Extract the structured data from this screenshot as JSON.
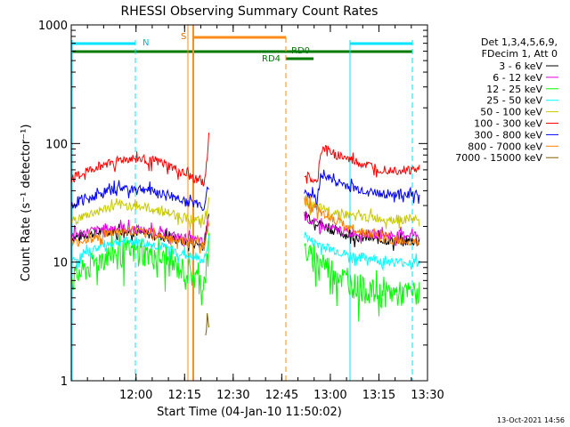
{
  "chart_data": {
    "type": "line",
    "title": "RHESSI Observing Summary Count Rates",
    "xlabel": "Start Time (04-Jan-10 11:50:02)",
    "ylabel": "Count Rate (s⁻¹ detector⁻¹)",
    "yscale": "log",
    "xlim_min": [
      -10,
      100
    ],
    "ylim": [
      1,
      1000
    ],
    "x_ticks": [
      {
        "value": 10,
        "label": "12:00"
      },
      {
        "value": 25,
        "label": "12:15"
      },
      {
        "value": 40,
        "label": "12:30"
      },
      {
        "value": 55,
        "label": "12:45"
      },
      {
        "value": 70,
        "label": "13:00"
      },
      {
        "value": 85,
        "label": "13:15"
      },
      {
        "value": 100,
        "label": "13:30"
      }
    ],
    "y_ticks": [
      {
        "value": 1,
        "label": "1"
      },
      {
        "value": 10,
        "label": "10"
      },
      {
        "value": 100,
        "label": "100"
      },
      {
        "value": 1000,
        "label": "1000"
      }
    ],
    "legend_header": [
      "Det 1,3,4,5,6,9,",
      "FDecim 1, Att 0"
    ],
    "series": [
      {
        "name": "3 - 6 keV",
        "color": "#000000",
        "x": [
          -10,
          -5,
          0,
          5,
          10,
          15,
          20,
          25,
          30,
          31,
          32.5,
          62,
          64,
          70,
          75,
          80,
          85,
          90,
          95,
          97.5
        ],
        "values": [
          16,
          17,
          18,
          18.5,
          18,
          17,
          16,
          15,
          14,
          13.5,
          24,
          26,
          23,
          19,
          17,
          16,
          15.5,
          15,
          15,
          15
        ]
      },
      {
        "name": "6 - 12 keV",
        "color": "#e000e0",
        "x": [
          -10,
          -5,
          0,
          5,
          10,
          15,
          20,
          25,
          30,
          31,
          32.5,
          62,
          64,
          70,
          75,
          80,
          85,
          90,
          95,
          97.5
        ],
        "values": [
          17,
          18,
          19,
          19.5,
          19,
          18,
          17,
          16,
          15,
          14.5,
          25,
          25,
          22,
          19,
          18,
          17.5,
          17,
          17,
          17,
          17
        ]
      },
      {
        "name": "12 - 25 keV",
        "color": "#00ff00",
        "x": [
          -10,
          -5,
          0,
          5,
          10,
          15,
          20,
          25,
          30,
          31,
          32.5,
          62,
          64,
          70,
          75,
          80,
          85,
          90,
          95,
          97.5
        ],
        "values": [
          7,
          9,
          11,
          12.5,
          12.5,
          11.5,
          10,
          8.5,
          7,
          6.5,
          12,
          13,
          11,
          9,
          7,
          6,
          5.5,
          5.5,
          5.5,
          5.5
        ]
      },
      {
        "name": "25 - 50 keV",
        "color": "#00ffff",
        "x": [
          -10,
          -5,
          0,
          5,
          10,
          15,
          20,
          25,
          30,
          31,
          32.5,
          62,
          64,
          70,
          75,
          80,
          85,
          90,
          95,
          97.5
        ],
        "values": [
          10,
          12,
          14,
          15,
          15,
          14,
          13,
          11.5,
          10.5,
          10,
          16,
          17,
          15,
          13,
          11.5,
          11,
          10.5,
          10,
          10,
          10
        ]
      },
      {
        "name": "50 - 100 keV",
        "color": "#c8c800",
        "x": [
          -10,
          -5,
          0,
          5,
          10,
          15,
          20,
          25,
          30,
          31,
          32.5,
          62,
          64,
          70,
          75,
          80,
          85,
          90,
          95,
          97.5
        ],
        "values": [
          22,
          25,
          28,
          30,
          30,
          28,
          26,
          24,
          22,
          21,
          33,
          33,
          30,
          27,
          25,
          24,
          23.5,
          23,
          23,
          23
        ]
      },
      {
        "name": "100 - 300 keV",
        "color": "#ff0000",
        "x": [
          -10,
          -5,
          0,
          5,
          10,
          15,
          20,
          25,
          30,
          31,
          32,
          32.5,
          62,
          64,
          66,
          67,
          68,
          70,
          75,
          80,
          85,
          90,
          95,
          97.5
        ],
        "values": [
          50,
          58,
          67,
          73,
          75,
          72,
          65,
          55,
          48,
          46,
          70,
          130,
          55,
          50,
          45,
          85,
          92,
          85,
          75,
          67,
          62,
          60,
          60,
          60
        ]
      },
      {
        "name": "300 - 800 keV",
        "color": "#0000ff",
        "x": [
          -10,
          -5,
          0,
          5,
          10,
          15,
          20,
          25,
          30,
          31,
          32.5,
          62,
          64,
          66,
          67,
          68,
          70,
          75,
          80,
          85,
          90,
          95,
          97.5
        ],
        "values": [
          30,
          34,
          39,
          42,
          42,
          40,
          37,
          33,
          30,
          29,
          45,
          40,
          37,
          34,
          52,
          56,
          50,
          44,
          40,
          38,
          37.5,
          37.5,
          37.5
        ]
      },
      {
        "name": "800 - 7000 keV",
        "color": "#ff8000",
        "x": [
          -10,
          -5,
          0,
          5,
          10,
          15,
          20,
          25,
          30,
          31,
          32.5,
          62,
          64,
          70,
          75,
          80,
          85,
          90,
          95,
          97.5
        ],
        "values": [
          14,
          15.5,
          17,
          18,
          18,
          17,
          16,
          15,
          14,
          13.5,
          22,
          33,
          30,
          24,
          20,
          18,
          16,
          15,
          15,
          15
        ]
      },
      {
        "name": "7000 - 15000 keV",
        "color": "#806000",
        "x": [
          31.5,
          32,
          32.5
        ],
        "values": [
          2.5,
          4,
          3
        ]
      }
    ],
    "annotations": [
      {
        "text": "N",
        "kind": "night"
      },
      {
        "text": "S",
        "kind": "saa"
      },
      {
        "text": "RD0",
        "kind": "decimation"
      },
      {
        "text": "RD4",
        "kind": "decimation"
      }
    ]
  },
  "stamp": "13-Oct-2021 14:56"
}
